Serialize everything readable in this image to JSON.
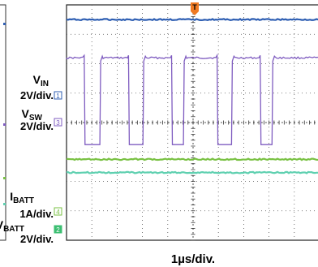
{
  "chart_data": {
    "type": "line",
    "title": "",
    "xlabel": "1µs/div.",
    "ylabel": "",
    "grid": true,
    "x_divisions": 10,
    "y_divisions": 8,
    "trigger_marker": "T",
    "x_range_div": [
      0,
      10
    ],
    "y_range_div": [
      0,
      8
    ],
    "series": [
      {
        "key": "vin",
        "label_main": "V",
        "label_sub": "IN",
        "scale": "2V/div.",
        "channel_badge": "1",
        "color": "#2f5fb3",
        "level_div": 7.5,
        "waveform": "flat"
      },
      {
        "key": "vsw",
        "label_main": "V",
        "label_sub": "SW",
        "scale": "2V/div.",
        "channel_badge": "3",
        "color": "#7f5cc0",
        "high_div": 6.2,
        "low_div": 3.25,
        "waveform": "switching",
        "low_pulses_div": [
          [
            0.7,
            1.35
          ],
          [
            2.45,
            3.05
          ],
          [
            4.15,
            4.65
          ],
          [
            5.95,
            6.55
          ],
          [
            7.65,
            8.15
          ]
        ]
      },
      {
        "key": "ibatt",
        "label_main": "I",
        "label_sub": "BATT",
        "scale": "1A/div.",
        "channel_badge": "4",
        "color": "#79c143",
        "level_div": 2.75,
        "waveform": "flat"
      },
      {
        "key": "vbatt",
        "label_main": "V",
        "label_sub": "BATT",
        "scale": "2V/div.",
        "channel_badge": "2",
        "color": "#5fd0b0",
        "level_div": 2.3,
        "waveform": "flat"
      }
    ]
  }
}
